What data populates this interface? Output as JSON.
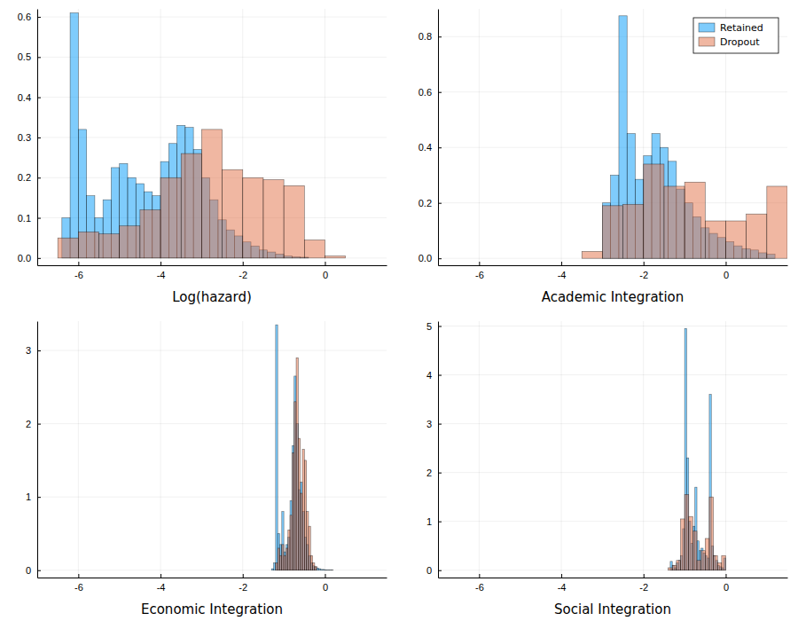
{
  "chart_data": [
    {
      "type": "histogram",
      "xlabel": "Log(hazard)",
      "grid": true,
      "xlim": [
        -7,
        1.5
      ],
      "xticks": [
        -6,
        -4,
        -2,
        0
      ],
      "ylim": [
        -0.018,
        0.62
      ],
      "yticks": [
        {
          "value": 0,
          "label": "0.0"
        },
        0.1,
        0.2,
        0.3,
        0.4,
        0.5,
        0.6
      ],
      "series": [
        {
          "color": "#009AFA",
          "bins": [
            -6.4,
            -6.2,
            -6,
            -5.8,
            -5.6,
            -5.4,
            -5.2,
            -5,
            -4.8,
            -4.6,
            -4.4,
            -4.2,
            -4,
            -3.8,
            -3.6,
            -3.4,
            -3.2,
            -3,
            -2.8,
            -2.6,
            -2.4,
            -2.2,
            -2,
            -1.8,
            -1.6,
            -1.4,
            -1.2,
            -1,
            -0.8,
            -0.6,
            -0.4
          ],
          "values": [
            0.1,
            0.61,
            0.32,
            0.155,
            0.1,
            0.145,
            0.225,
            0.235,
            0.2,
            0.185,
            0.165,
            0.155,
            0.24,
            0.285,
            0.33,
            0.325,
            0.27,
            0.2,
            0.145,
            0.095,
            0.07,
            0.055,
            0.04,
            0.03,
            0.02,
            0.015,
            0.01,
            0.005,
            0.003,
            0.002
          ]
        },
        {
          "color": "#E26F46",
          "bins": [
            -6.5,
            -6,
            -5.5,
            -5,
            -4.5,
            -4,
            -3.5,
            -3,
            -2.5,
            -2,
            -1.5,
            -1,
            -0.5,
            0,
            0.5
          ],
          "values": [
            0.05,
            0.065,
            0.06,
            0.08,
            0.12,
            0.2,
            0.26,
            0.32,
            0.22,
            0.2,
            0.195,
            0.18,
            0.045,
            0.005
          ]
        }
      ]
    },
    {
      "type": "histogram",
      "xlabel": "Academic Integration",
      "grid": true,
      "legend": "top-right",
      "xlim": [
        -7,
        1.5
      ],
      "xticks": [
        -6,
        -4,
        -2,
        0
      ],
      "ylim": [
        -0.025,
        0.9
      ],
      "yticks": [
        {
          "value": 0,
          "label": "0.0"
        },
        0.2,
        0.4,
        0.6,
        0.8
      ],
      "series": [
        {
          "name": "Retained",
          "color": "#009AFA",
          "bins": [
            -3,
            -2.8,
            -2.6,
            -2.4,
            -2.2,
            -2,
            -1.8,
            -1.6,
            -1.4,
            -1.2,
            -1,
            -0.8,
            -0.6,
            -0.4,
            -0.2,
            0,
            0.2,
            0.4,
            0.6,
            0.8,
            1,
            1.2
          ],
          "values": [
            0.2,
            0.3,
            0.875,
            0.45,
            0.285,
            0.37,
            0.45,
            0.4,
            0.35,
            0.25,
            0.2,
            0.15,
            0.11,
            0.09,
            0.075,
            0.06,
            0.045,
            0.035,
            0.03,
            0.02,
            0.015
          ]
        },
        {
          "name": "Dropout",
          "color": "#E26F46",
          "bins": [
            -3.5,
            -3,
            -2.5,
            -2,
            -1.5,
            -1,
            -0.5,
            0,
            0.5,
            1,
            1.5
          ],
          "values": [
            0.025,
            0.19,
            0.195,
            0.34,
            0.26,
            0.275,
            0.135,
            0.135,
            0.16,
            0.26
          ]
        }
      ]
    },
    {
      "type": "histogram",
      "xlabel": "Economic Integration",
      "grid": true,
      "xlim": [
        -7,
        1.5
      ],
      "xticks": [
        -6,
        -4,
        -2,
        0
      ],
      "ylim": [
        -0.1,
        3.4
      ],
      "yticks": [
        0,
        1,
        2,
        3
      ],
      "series": [
        {
          "color": "#009AFA",
          "bins": [
            -1.3,
            -1.25,
            -1.2,
            -1.15,
            -1.1,
            -1.05,
            -1,
            -0.95,
            -0.9,
            -0.85,
            -0.8,
            -0.75,
            -0.7,
            -0.65,
            -0.6,
            -0.55,
            -0.5,
            -0.45,
            -0.4,
            -0.35,
            -0.3,
            -0.25,
            -0.2,
            -0.15,
            -0.1,
            -0.05,
            0,
            0.05,
            0.1,
            0.15,
            0.2
          ],
          "values": [
            0.02,
            0.1,
            3.35,
            0.5,
            0.35,
            0.8,
            0.25,
            0.35,
            0.45,
            0.95,
            1.7,
            2.65,
            2.0,
            1.1,
            1.2,
            0.8,
            0.45,
            0.35,
            0.2,
            0.1,
            0.06,
            0.04,
            0.03,
            0.02,
            0.01,
            0.01,
            0.005,
            0.005,
            0.003,
            0.002
          ]
        },
        {
          "color": "#E26F46",
          "bins": [
            -1.2,
            -1.15,
            -1.1,
            -1.05,
            -1,
            -0.95,
            -0.9,
            -0.85,
            -0.8,
            -0.75,
            -0.7,
            -0.65,
            -0.6,
            -0.55,
            -0.5,
            -0.45,
            -0.4,
            -0.35,
            -0.3,
            -0.25,
            -0.2
          ],
          "values": [
            0.1,
            0.3,
            0.2,
            0.35,
            0.2,
            0.3,
            0.55,
            0.75,
            1.6,
            2.3,
            2.9,
            1.8,
            1.05,
            1.65,
            1.5,
            0.8,
            0.6,
            0.2,
            0.1,
            0.05
          ]
        }
      ]
    },
    {
      "type": "histogram",
      "xlabel": "Social Integration",
      "grid": true,
      "xlim": [
        -7,
        1.5
      ],
      "xticks": [
        -6,
        -4,
        -2,
        0
      ],
      "ylim": [
        -0.15,
        5.1
      ],
      "yticks": [
        0,
        1,
        2,
        3,
        4,
        5
      ],
      "series": [
        {
          "color": "#009AFA",
          "bins": [
            -1.35,
            -1.3,
            -1.25,
            -1.2,
            -1.15,
            -1.1,
            -1.05,
            -1,
            -0.95,
            -0.9,
            -0.85,
            -0.8,
            -0.75,
            -0.7,
            -0.65,
            -0.6,
            -0.55,
            -0.5,
            -0.45,
            -0.4,
            -0.35,
            -0.3,
            -0.25,
            -0.2,
            -0.15,
            -0.1,
            -0.05,
            0
          ],
          "values": [
            0.18,
            0.1,
            0.05,
            0.15,
            0.2,
            0.3,
            0.85,
            4.95,
            2.3,
            1.0,
            0.55,
            0.9,
            1.7,
            0.6,
            0.4,
            0.45,
            0.35,
            0.3,
            0.25,
            3.6,
            0.5,
            0.3,
            0.2,
            0.1,
            0.07,
            0.05,
            0.25
          ]
        },
        {
          "color": "#E26F46",
          "bins": [
            -1.4,
            -1.3,
            -1.2,
            -1.1,
            -1,
            -0.9,
            -0.8,
            -0.7,
            -0.6,
            -0.5,
            -0.4,
            -0.3,
            -0.2,
            -0.1,
            0
          ],
          "values": [
            0.05,
            0.1,
            0.2,
            1.05,
            1.55,
            1.1,
            0.8,
            0.2,
            0.4,
            0.65,
            1.5,
            0.3,
            0.15,
            0.3
          ]
        }
      ]
    }
  ]
}
